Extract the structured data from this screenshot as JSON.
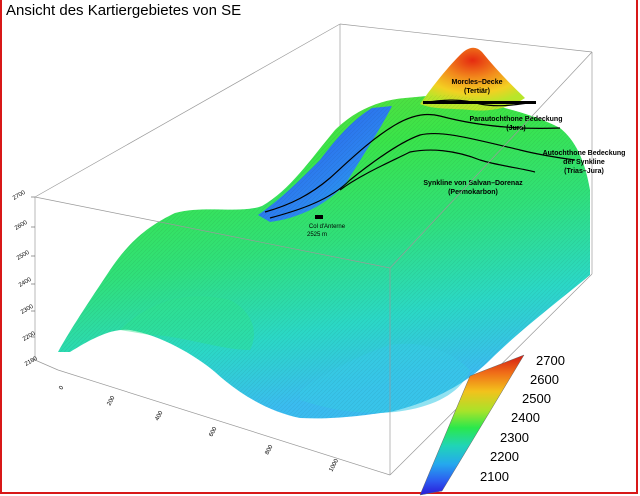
{
  "title": "Ansicht des Kartiergebietes von SE",
  "units": [
    {
      "name": "Morcles–Decke",
      "age": "(Tertiär)"
    },
    {
      "name": "Parautochthone Bedeckung",
      "age": "(Jura)"
    },
    {
      "name": "Autochthone Bedeckung",
      "line2": "der Synkline",
      "age": "(Trias–Jura)"
    },
    {
      "name": "Synkline von Salvan–Dorenaz",
      "age": "(Permokarbon)"
    }
  ],
  "point": {
    "name": "Col d'Anterne",
    "elevation": "2525 m"
  },
  "colorbar": {
    "ticks": [
      "2700",
      "2600",
      "2500",
      "2400",
      "2300",
      "2200",
      "2100"
    ],
    "colors": [
      "#d41a12",
      "#f06f18",
      "#f2c21c",
      "#a8e32a",
      "#2ae84c",
      "#20d4b8",
      "#25a8ee",
      "#2c5cf0",
      "#2a1ad8"
    ]
  },
  "axes": {
    "vertical_ticks": [
      "2700",
      "2600",
      "2500",
      "2400",
      "2300",
      "2200",
      "2100"
    ],
    "horizontal_ticks": [
      "0",
      "200",
      "400",
      "600",
      "800",
      "1000"
    ]
  }
}
